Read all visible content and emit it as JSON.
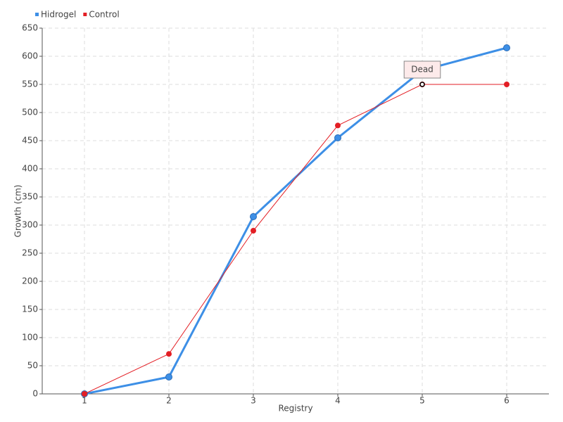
{
  "chart_data": {
    "type": "line",
    "x_label": "Registry",
    "y_label": "Growth (cm)",
    "x": [
      1,
      2,
      3,
      4,
      5,
      6
    ],
    "xlim": [
      0.5,
      6.5
    ],
    "xticks": [
      1,
      2,
      3,
      4,
      5,
      6
    ],
    "ylim": [
      0,
      650
    ],
    "yticks": [
      0,
      50,
      100,
      150,
      200,
      250,
      300,
      350,
      400,
      450,
      500,
      550,
      600,
      650
    ],
    "grid": true,
    "legend": "top-left",
    "series": [
      {
        "name": "Hidrogel",
        "color": "#3d8fe6",
        "values": [
          0,
          30,
          315,
          455,
          575,
          615
        ]
      },
      {
        "name": "Control",
        "color": "#e31e24",
        "values": [
          0,
          71,
          290,
          477,
          550,
          550
        ]
      }
    ],
    "annotations": [
      {
        "text": "Dead",
        "x": 5,
        "y": 550
      }
    ]
  }
}
